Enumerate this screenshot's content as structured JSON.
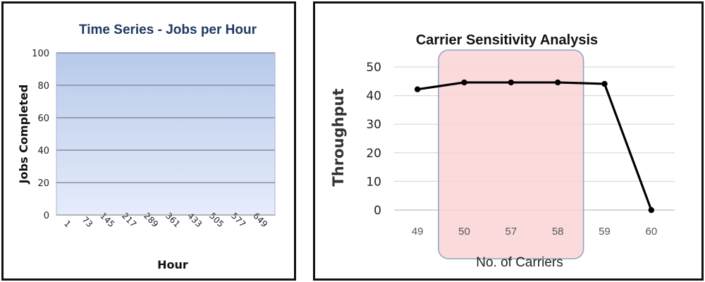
{
  "chart_data": [
    {
      "type": "line",
      "title": "Time Series - Jobs per Hour",
      "xlabel": "Hour",
      "ylabel": "Jobs Completed",
      "ylim": [
        0,
        100
      ],
      "y_ticks": [
        "0",
        "20",
        "40",
        "60",
        "80",
        "100"
      ],
      "x_ticks": [
        "1",
        "73",
        "145",
        "217",
        "289",
        "361",
        "433",
        "505",
        "577",
        "649"
      ],
      "grid": true,
      "series": []
    },
    {
      "type": "line",
      "title": "Carrier Sensitivity Analysis",
      "xlabel": "No. of Carriers",
      "ylabel": "Throughput",
      "ylim": [
        0,
        50
      ],
      "y_ticks": [
        "0",
        "10",
        "20",
        "30",
        "40",
        "50"
      ],
      "categories": [
        "49",
        "50",
        "57",
        "58",
        "59",
        "60"
      ],
      "series": [
        {
          "values": [
            42.2,
            44.6,
            44.6,
            44.6,
            44.1,
            0
          ]
        }
      ],
      "highlight": {
        "from_category": "50",
        "to_category": "58"
      },
      "grid": true
    }
  ],
  "colors": {
    "left_title": "#1F3864",
    "left_plot_top": "#B7CAEA",
    "left_plot_bottom": "#E6ECFA",
    "left_grid": "#8E89A6",
    "right_line": "#000000",
    "right_grid": "#D9D9D9",
    "highlight_fill": "#F9D3D3",
    "highlight_stroke": "#8AA2C4"
  }
}
